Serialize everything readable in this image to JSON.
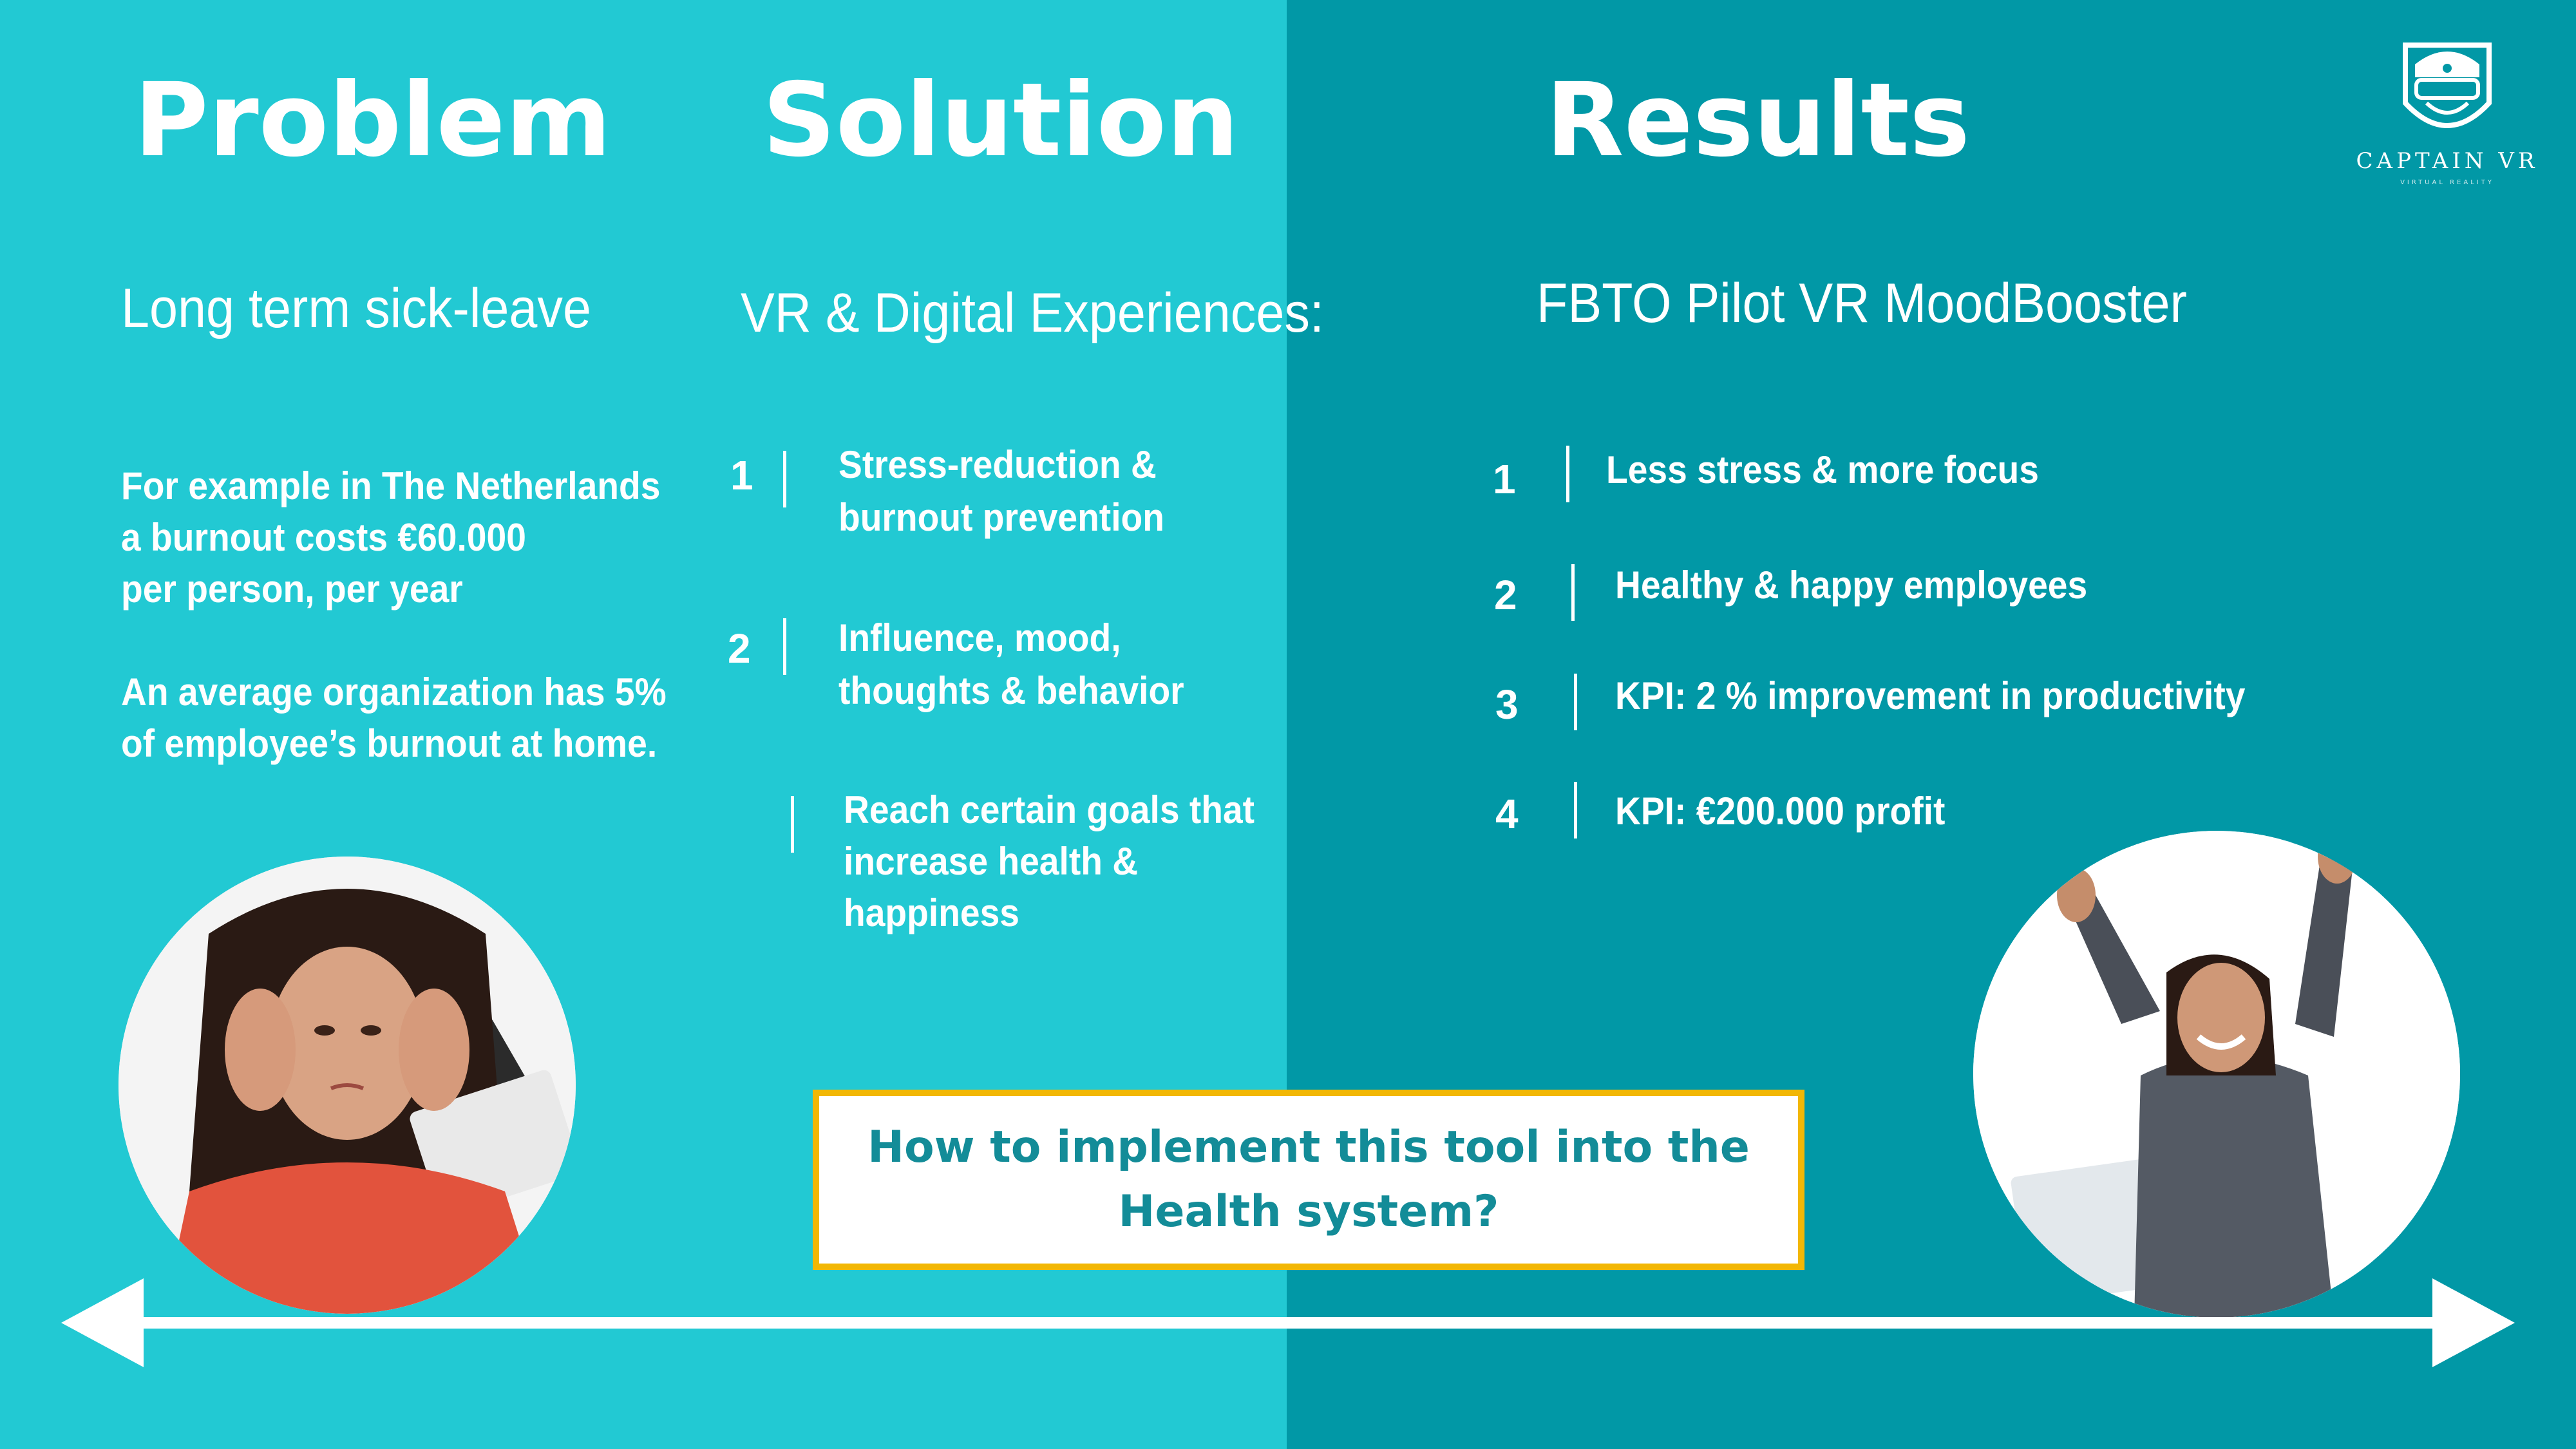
{
  "headers": {
    "problem": "Problem",
    "solution": "Solution",
    "results": "Results"
  },
  "logo": {
    "name": "CAPTAIN VR",
    "tagline": "VIRTUAL REALITY"
  },
  "problem": {
    "subtitle": "Long term sick-leave",
    "lines": [
      "For example in The Netherlands",
      "a burnout costs €60.000",
      "per person, per year",
      "",
      "An average organization has 5%",
      "of employee’s burnout at home."
    ]
  },
  "solution": {
    "subtitle": "VR & Digital Experiences:",
    "items": [
      {
        "num": "1",
        "lines": [
          "Stress-reduction &",
          "burnout prevention"
        ]
      },
      {
        "num": "2",
        "lines": [
          "Influence, mood,",
          "thoughts & behavior"
        ]
      },
      {
        "num": "",
        "lines": [
          "Reach certain goals that",
          "increase health &",
          "happiness"
        ]
      }
    ]
  },
  "results": {
    "subtitle": "FBTO Pilot VR MoodBooster",
    "items": [
      {
        "num": "1",
        "text": "Less stress & more focus"
      },
      {
        "num": "2",
        "text": "Healthy & happy employees"
      },
      {
        "num": "3",
        "text": "KPI:  2 % improvement in productivity"
      },
      {
        "num": "4",
        "text": "KPI:  €200.000 profit"
      }
    ]
  },
  "callout": {
    "text": "How to implement this tool into the\nHealth system?"
  },
  "colors": {
    "left_bg": "#22c9d3",
    "right_bg": "#0198a6",
    "callout_border": "#f2b705",
    "callout_text": "#138c98"
  }
}
